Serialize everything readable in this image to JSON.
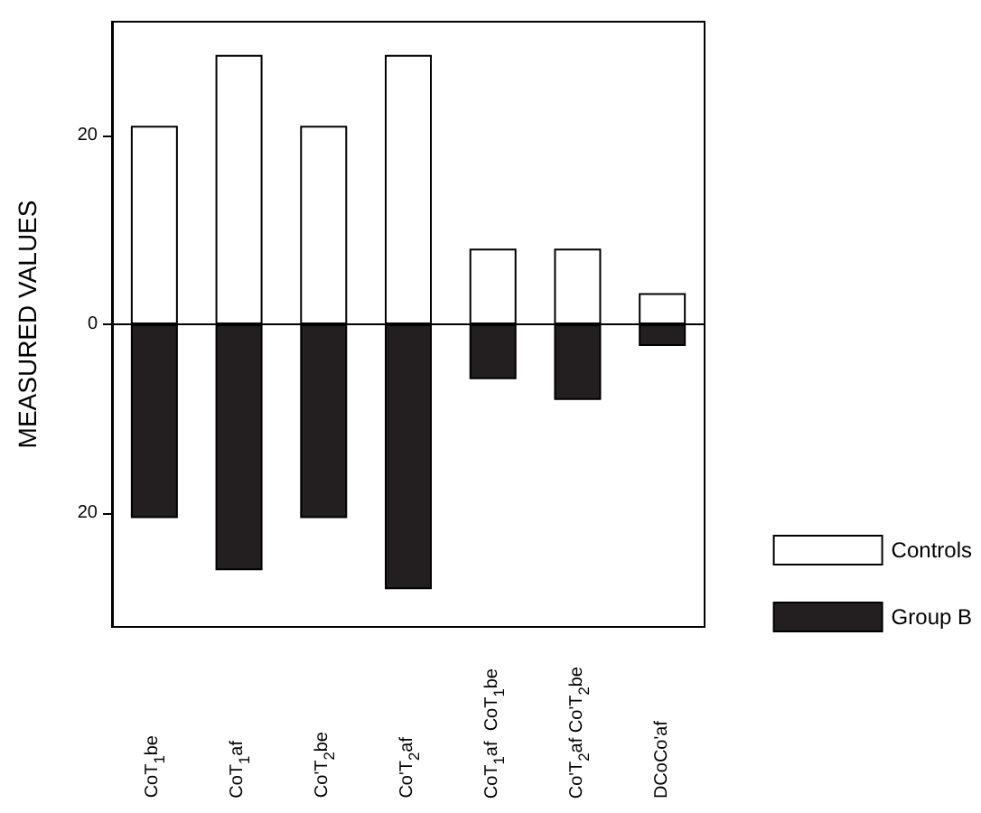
{
  "chart_data": {
    "type": "bar",
    "ylabel": "MEASURED VALUES",
    "categories": [
      "CoT$_{1}$be",
      "CoT$_{1}$af",
      "Co'T$_{2}$be",
      "Co'T$_{2}$af",
      "CoT$_{1}$af  CoT$_{1}$be",
      "Co'T$_{2}$af Co'T$_{2}$be",
      "DCoCo'af"
    ],
    "series": [
      {
        "name": "Controls",
        "color": "#ffffff",
        "values": [
          21,
          28.5,
          21,
          28.5,
          8,
          8,
          3.3
        ]
      },
      {
        "name": "Group B",
        "color": "#231f20",
        "values": [
          -20.5,
          -26,
          -20.5,
          -28,
          -5.8,
          -8,
          -2.3
        ]
      }
    ],
    "stacked": true,
    "ylim": [
      -32,
      32
    ],
    "yticks": [
      {
        "value": -20,
        "label": "20"
      },
      0,
      20
    ],
    "legend": "bottom right"
  }
}
